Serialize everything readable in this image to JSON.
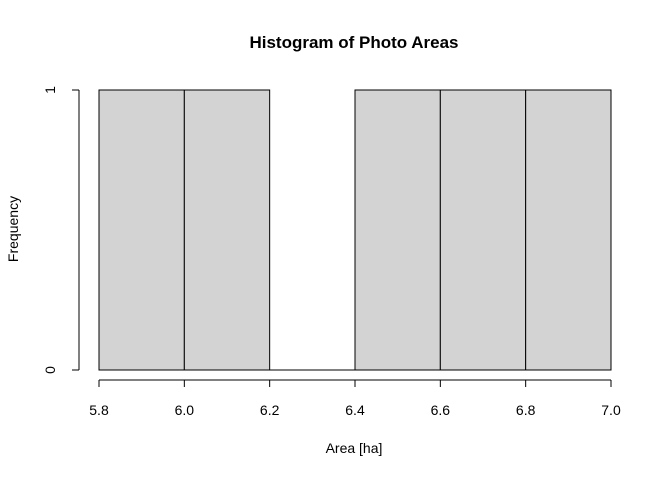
{
  "chart_data": {
    "type": "bar",
    "title": "Histogram of Photo Areas",
    "xlabel": "Area [ha]",
    "ylabel": "Frequency",
    "bins": [
      {
        "start": 5.8,
        "end": 6.0,
        "count": 1
      },
      {
        "start": 6.0,
        "end": 6.2,
        "count": 1
      },
      {
        "start": 6.2,
        "end": 6.4,
        "count": 0
      },
      {
        "start": 6.4,
        "end": 6.6,
        "count": 1
      },
      {
        "start": 6.6,
        "end": 6.8,
        "count": 1
      },
      {
        "start": 6.8,
        "end": 7.0,
        "count": 1
      }
    ],
    "xlim": [
      5.8,
      7.0
    ],
    "ylim": [
      0,
      1
    ],
    "x_ticks": [
      "5.8",
      "6.0",
      "6.2",
      "6.4",
      "6.6",
      "6.8",
      "7.0"
    ],
    "y_ticks": [
      "0",
      "1"
    ],
    "bar_color": "#d3d3d3",
    "border_color": "#000000",
    "grid": false,
    "legend": "none"
  }
}
